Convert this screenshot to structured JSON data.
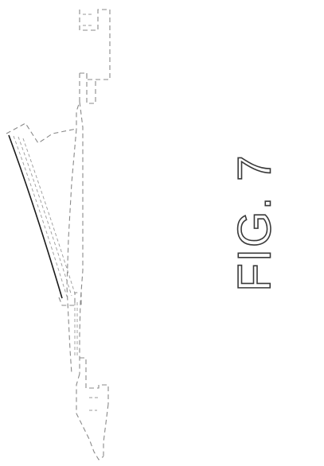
{
  "figure": {
    "label": "FIG. 7"
  },
  "colors": {
    "hidden_line": "#8a8a8a",
    "visible_line": "#1a1a1a",
    "label_outline": "#3a3a3a"
  }
}
